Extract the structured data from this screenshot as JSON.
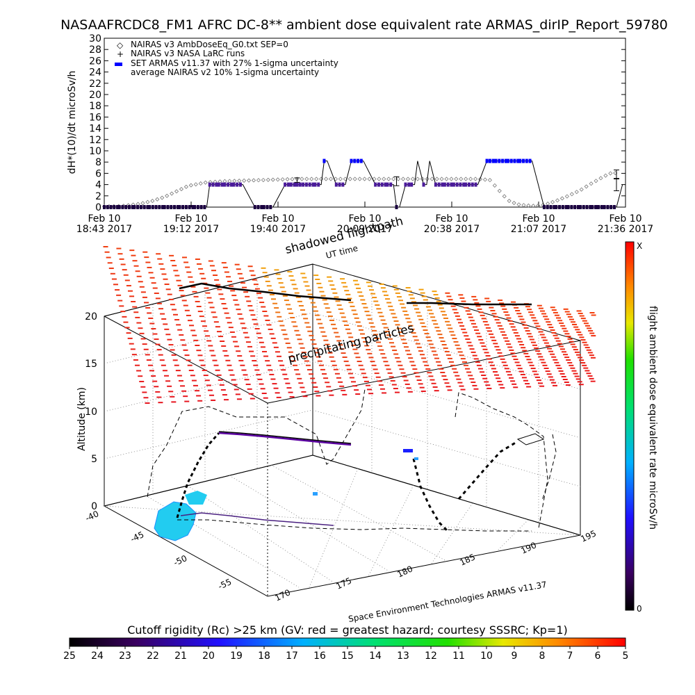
{
  "title": "NASAAFRCDC8_FM1 AFRC DC-8** ambient dose equivalent rate ARMAS_dirIP_Report_59780",
  "colors": {
    "armas": "#0000ff",
    "nairas_avg": "#5a00a0",
    "dotted": "#7a7a7a",
    "field": "#ff2a1a",
    "cyan_blob": "#22ccf0"
  },
  "chart_data": [
    {
      "type": "line",
      "ylabel": "dH*(10)/dt microSv/h",
      "ylim": [
        0,
        30
      ],
      "yticks": [
        "0",
        "2",
        "4",
        "6",
        "8",
        "10",
        "12",
        "14",
        "16",
        "18",
        "20",
        "22",
        "24",
        "26",
        "28",
        "30"
      ],
      "xlim_minutes": [
        0,
        173
      ],
      "xtick_labels": [
        {
          "line1": "Feb 10",
          "line2": "18:43 2017"
        },
        {
          "line1": "Feb 10",
          "line2": "19:12 2017"
        },
        {
          "line1": "Feb 10",
          "line2": "19:40 2017"
        },
        {
          "line1": "Feb 10",
          "line2": "20:09 2017"
        },
        {
          "line1": "Feb 10",
          "line2": "20:38 2017"
        },
        {
          "line1": "Feb 10",
          "line2": "21:07 2017"
        },
        {
          "line1": "Feb 10",
          "line2": "21:36 2017"
        }
      ],
      "legend": [
        "NAIRAS v3 AmbDoseEq_G0.txt SEP=0",
        "NAIRAS v3 NASA LaRC runs",
        "SET ARMAS v11.37 with 27% 1-sigma uncertainty",
        "average NAIRAS v2 10% 1-sigma uncertainty"
      ],
      "series": [
        {
          "name": "NAIRAS v3 AmbDoseEq_G0.txt SEP=0",
          "x": [
            0,
            6,
            12,
            16,
            20,
            24,
            28,
            34,
            40,
            46,
            52,
            58,
            64,
            70,
            76,
            82,
            88,
            94,
            100,
            106,
            112,
            118,
            124,
            128,
            131,
            134,
            137,
            140,
            143,
            146,
            150,
            154,
            158,
            162,
            166,
            168,
            171
          ],
          "y": [
            0.1,
            0.2,
            0.6,
            1.1,
            1.8,
            2.8,
            3.8,
            4.4,
            4.6,
            4.7,
            4.8,
            4.9,
            5.0,
            5.0,
            5.0,
            5.0,
            5.0,
            5.0,
            5.0,
            5.0,
            5.0,
            5.0,
            5.0,
            4.8,
            3.0,
            1.2,
            0.5,
            0.3,
            0.2,
            0.4,
            1.1,
            2.0,
            3.0,
            4.3,
            5.5,
            6.0,
            6.1
          ]
        },
        {
          "name": "SET ARMAS v11.37 with 27% 1-sigma uncertainty",
          "x": [
            0,
            5,
            10,
            15,
            20,
            25,
            30,
            34,
            35,
            38,
            40,
            43,
            46,
            50,
            53,
            56,
            60,
            62,
            64,
            65,
            66,
            70,
            72,
            73,
            74,
            77,
            80,
            82,
            86,
            90,
            94,
            96,
            97,
            98,
            100,
            102,
            103,
            104,
            106,
            107,
            108,
            110,
            113,
            116,
            120,
            124,
            127,
            128,
            130,
            134,
            138,
            142,
            146,
            150,
            154,
            158,
            162,
            164,
            166,
            170,
            172
          ],
          "y": [
            0,
            0,
            0,
            0,
            0,
            0,
            0,
            0,
            4.0,
            4.0,
            4.0,
            4.0,
            4.0,
            0,
            0,
            0,
            4.0,
            4.0,
            4.0,
            4.0,
            4.0,
            4.0,
            4.0,
            8.2,
            8.2,
            4.0,
            4.0,
            8.2,
            8.2,
            4.0,
            4.0,
            4.0,
            0,
            0,
            4.0,
            4.0,
            4.0,
            8.2,
            4.0,
            4.0,
            8.2,
            4.0,
            4.0,
            4.0,
            4.0,
            4.0,
            8.2,
            8.2,
            8.2,
            8.2,
            8.2,
            8.2,
            0,
            0,
            0,
            0,
            0,
            0,
            0,
            0,
            4.0
          ],
          "uncertainty_pct": 27
        }
      ],
      "error_bars": [
        {
          "x": 64,
          "y": 4.8,
          "err": 0.4
        },
        {
          "x": 97,
          "y": 4.6,
          "err": 0.8
        },
        {
          "x": 170,
          "y": 5.8,
          "err": 0.8
        },
        {
          "x": 170,
          "y": 4.0,
          "err": 1.1
        }
      ]
    },
    {
      "type": "scatter",
      "subtype": "3d-flight-track",
      "zlabel": "Altitude (km)",
      "zticks": [
        "0",
        "5",
        "10",
        "15",
        "20"
      ],
      "lat_ticks": [
        "-40",
        "-45",
        "-50",
        "-55"
      ],
      "lon_ticks": [
        "170",
        "175",
        "180",
        "185",
        "190",
        "195"
      ],
      "annotations": [
        "shadowed flightpath",
        "UT time",
        "precipitating particles",
        "Space Environment Technologies ARMAS v11.37"
      ],
      "colorbar": {
        "label": "flight ambient dose equivalent rate microSv/h",
        "top_label": "X",
        "bottom_label": "0"
      }
    },
    {
      "type": "heatmap",
      "subtype": "colorbar",
      "label": "Cutoff rigidity (Rc) >25 km (GV: red = greatest hazard; courtesy SSSRC; Kp=1)",
      "ticks": [
        "25",
        "24",
        "23",
        "22",
        "21",
        "20",
        "19",
        "18",
        "17",
        "16",
        "15",
        "14",
        "13",
        "12",
        "11",
        "10",
        "9",
        "8",
        "7",
        "6",
        "5"
      ]
    }
  ]
}
